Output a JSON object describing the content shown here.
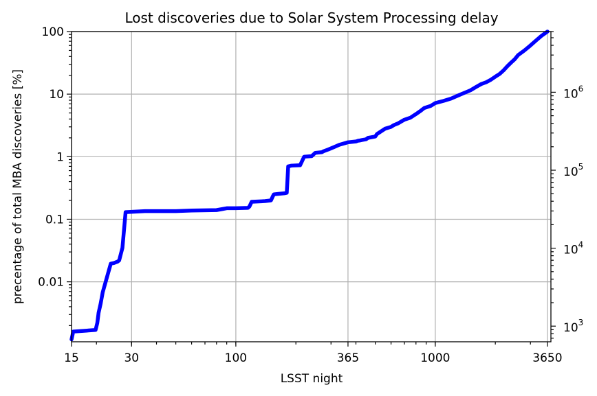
{
  "chart_data": {
    "type": "line",
    "title": "Lost discoveries due to Solar System Processing delay",
    "xlabel": "LSST night",
    "ylabel": "precentage of total MBA discoveries [%]",
    "xscale": "log",
    "yscale": "log",
    "xlim": [
      15,
      3800
    ],
    "ylim": [
      0.0011,
      100
    ],
    "y2lim": [
      630,
      6000000
    ],
    "grid": true,
    "x_ticks": [
      {
        "value": 15,
        "label": "15"
      },
      {
        "value": 30,
        "label": "30"
      },
      {
        "value": 100,
        "label": "100"
      },
      {
        "value": 365,
        "label": "365"
      },
      {
        "value": 1000,
        "label": "1000"
      },
      {
        "value": 3650,
        "label": "3650"
      }
    ],
    "y_ticks": [
      {
        "value": 0.01,
        "label": "0.01"
      },
      {
        "value": 0.1,
        "label": "0.1"
      },
      {
        "value": 1,
        "label": "1"
      },
      {
        "value": 10,
        "label": "10"
      },
      {
        "value": 100,
        "label": "100"
      }
    ],
    "y2_ticks": [
      {
        "value": 1000,
        "base": "10",
        "exp": "3"
      },
      {
        "value": 10000,
        "base": "10",
        "exp": "4"
      },
      {
        "value": 100000,
        "base": "10",
        "exp": "5"
      },
      {
        "value": 1000000,
        "base": "10",
        "exp": "6"
      }
    ],
    "series": [
      {
        "color": "#0000ff",
        "x": [
          15,
          15.3,
          19.8,
          20.2,
          20.5,
          21,
          21.5,
          23.6,
          24.5,
          25,
          25.5,
          26,
          27,
          28,
          35,
          50,
          60,
          80,
          85,
          90,
          100,
          115,
          117,
          120,
          140,
          150,
          153,
          155,
          165,
          175,
          180,
          183,
          190,
          210,
          220,
          240,
          250,
          270,
          275,
          290,
          310,
          330,
          365,
          400,
          410,
          420,
          430,
          450,
          460,
          500,
          510,
          560,
          600,
          620,
          650,
          680,
          700,
          750,
          800,
          850,
          880,
          950,
          1000,
          1100,
          1200,
          1300,
          1400,
          1500,
          1600,
          1700,
          1800,
          1900,
          2000,
          2100,
          2200,
          2300,
          2400,
          2500,
          2600,
          2800,
          3000,
          3200,
          3400,
          3650
        ],
        "y": [
          0.0012,
          0.0016,
          0.0017,
          0.0022,
          0.0032,
          0.0045,
          0.0068,
          0.0195,
          0.02,
          0.0205,
          0.021,
          0.022,
          0.035,
          0.13,
          0.135,
          0.135,
          0.138,
          0.14,
          0.145,
          0.15,
          0.15,
          0.152,
          0.16,
          0.19,
          0.195,
          0.2,
          0.23,
          0.25,
          0.255,
          0.26,
          0.265,
          0.7,
          0.72,
          0.73,
          1.0,
          1.02,
          1.15,
          1.18,
          1.22,
          1.3,
          1.42,
          1.55,
          1.7,
          1.75,
          1.8,
          1.82,
          1.85,
          1.9,
          2.0,
          2.1,
          2.3,
          2.8,
          3.0,
          3.2,
          3.4,
          3.7,
          3.9,
          4.2,
          4.8,
          5.5,
          6.0,
          6.5,
          7.2,
          7.8,
          8.5,
          9.5,
          10.5,
          11.5,
          13.0,
          14.5,
          15.5,
          17.0,
          19.0,
          21.0,
          24.0,
          28.0,
          32.0,
          36.0,
          42.0,
          50.0,
          60.0,
          72.0,
          85.0,
          100.0
        ]
      }
    ]
  }
}
